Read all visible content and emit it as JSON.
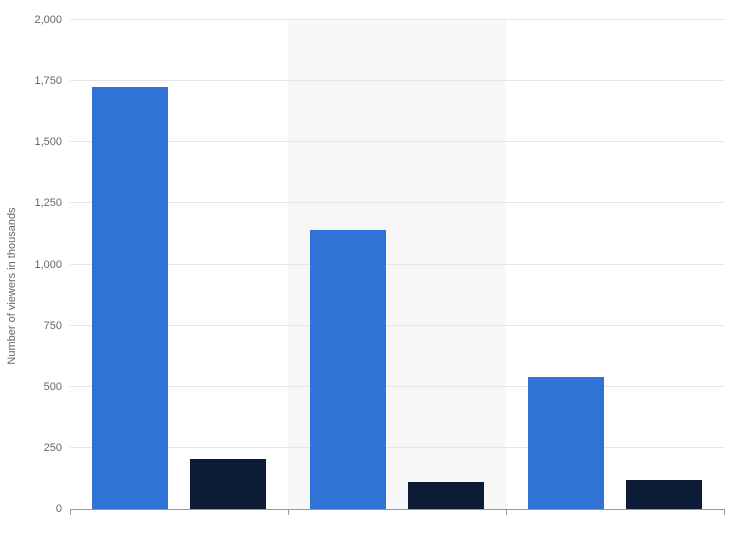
{
  "chart": {
    "type": "bar",
    "ylabel": "Number of viewers in thousands",
    "label_fontsize": 11,
    "label_color": "#666666",
    "ylim": [
      0,
      2000
    ],
    "ytick_step": 250,
    "ytick_labels": [
      "0",
      "250",
      "500",
      "750",
      "1,000",
      "1,250",
      "1,500",
      "1,750",
      "2,000"
    ],
    "group_count": 3,
    "series": [
      {
        "name": "series-a",
        "color": "#3172d7",
        "values": [
          1725,
          1140,
          540
        ]
      },
      {
        "name": "series-b",
        "color": "#0d1c36",
        "values": [
          205,
          110,
          120
        ]
      }
    ],
    "background_color": "#ffffff",
    "band_color": "#f7f7f7",
    "grid_color": "#e6e6e6",
    "axis_color": "#989898",
    "bar_width_pct": 11.5,
    "group_gap_pct": 3.5
  }
}
